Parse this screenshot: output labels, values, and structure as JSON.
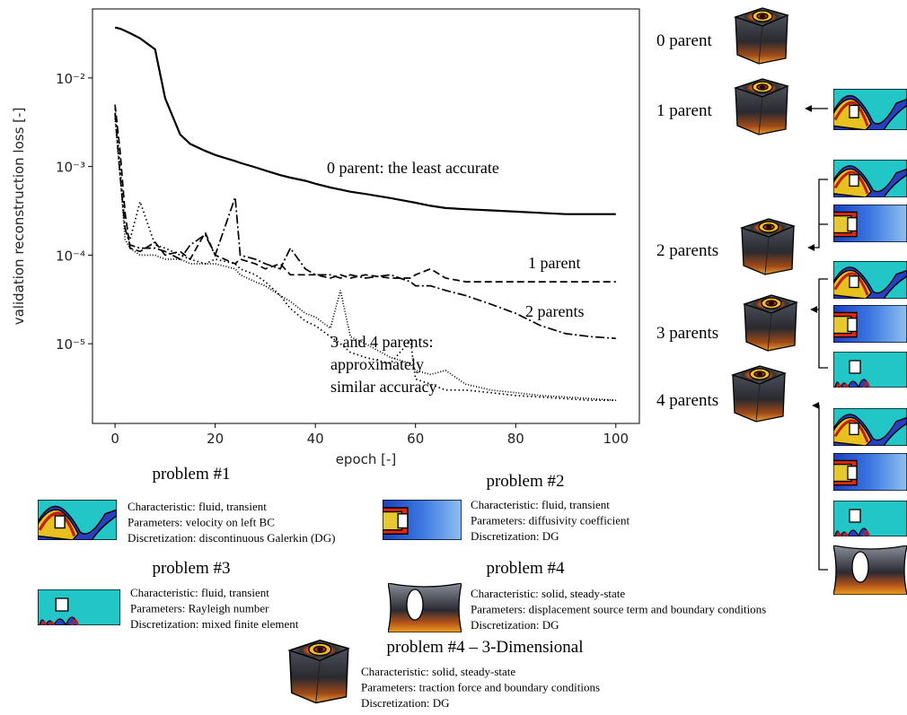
{
  "chart_data": {
    "type": "line",
    "yscale": "log",
    "x_label": "epoch [-]",
    "y_label": "validation reconstruction loss [-]",
    "xlim": [
      -4.5,
      104.7
    ],
    "xticks": [
      0,
      20,
      40,
      60,
      80,
      100
    ],
    "ylim": [
      1.26e-06,
      0.06
    ],
    "yticks": [
      {
        "value": 1e-05,
        "label": "10⁻⁵"
      },
      {
        "value": 0.0001,
        "label": "10⁻⁴"
      },
      {
        "value": 0.001,
        "label": "10⁻³"
      },
      {
        "value": 0.01,
        "label": "10⁻²"
      }
    ],
    "x": [
      0,
      1,
      2,
      3,
      5,
      8,
      10,
      13,
      15,
      18,
      20,
      24,
      25,
      28,
      30,
      33,
      35,
      38,
      40,
      43,
      45,
      47,
      50,
      55,
      59,
      60,
      63,
      66,
      70,
      75,
      80,
      85,
      90,
      95,
      100
    ],
    "series": [
      {
        "color": "#000",
        "dash": "solid",
        "values": [
          0.037,
          0.036,
          0.034,
          0.032,
          0.028,
          0.021,
          0.0059,
          0.0023,
          0.0018,
          0.0015,
          0.00135,
          0.00115,
          0.0011,
          0.00098,
          0.0009,
          0.0008,
          0.00075,
          0.00069,
          0.00064,
          0.00058,
          0.00055,
          0.00052,
          0.00049,
          0.00044,
          0.0004,
          0.00039,
          0.00036,
          0.00034,
          0.00033,
          0.00032,
          0.00031,
          0.0003,
          0.00029,
          0.00029,
          0.00029
        ]
      },
      {
        "color": "#000",
        "dash": "dashed",
        "values": [
          0.005,
          0.0015,
          0.0003,
          0.00012,
          0.00011,
          0.00014,
          0.0001,
          0.00011,
          9e-05,
          0.00018,
          0.0001,
          8e-05,
          9e-05,
          8e-05,
          7e-05,
          8e-05,
          6e-05,
          6e-05,
          6e-05,
          5.5e-05,
          6e-05,
          5.5e-05,
          6e-05,
          5.5e-05,
          5.5e-05,
          6e-05,
          7e-05,
          5.5e-05,
          5e-05,
          5e-05,
          5e-05,
          5e-05,
          5e-05,
          5e-05,
          5e-05
        ]
      },
      {
        "color": "#000",
        "dash": "dashdot",
        "values": [
          0.004,
          0.0008,
          0.0002,
          0.00013,
          0.00012,
          0.00012,
          0.00011,
          9e-05,
          0.00013,
          0.00017,
          0.0001,
          0.00045,
          0.0001,
          9e-05,
          8e-05,
          7e-05,
          0.00012,
          7e-05,
          6e-05,
          6e-05,
          5.5e-05,
          6e-05,
          5.5e-05,
          6e-05,
          5e-05,
          4.5e-05,
          4.5e-05,
          4e-05,
          3.5e-05,
          2.8e-05,
          2.2e-05,
          1.6e-05,
          1.3e-05,
          1.2e-05,
          1.15e-05
        ]
      },
      {
        "color": "#000",
        "dash": "dotted",
        "values": [
          0.0045,
          0.001,
          0.0002,
          0.00015,
          0.0004,
          0.00013,
          0.00012,
          0.0001,
          9e-05,
          8e-05,
          9e-05,
          8e-05,
          7e-05,
          6e-05,
          5e-05,
          3.5e-05,
          2.5e-05,
          1.8e-05,
          1.6e-05,
          1.2e-05,
          1e-05,
          8e-06,
          7e-06,
          6e-06,
          1.1e-05,
          4e-06,
          3.5e-06,
          3e-06,
          3e-06,
          2.8e-06,
          2.6e-06,
          2.5e-06,
          2.4e-06,
          2.3e-06,
          2.3e-06
        ]
      },
      {
        "color": "#000",
        "dash": "dotted2",
        "values": [
          0.0035,
          0.0008,
          0.00015,
          0.00012,
          0.0001,
          0.0001,
          9e-05,
          9e-05,
          8e-05,
          8e-05,
          8e-05,
          7e-05,
          6e-05,
          5e-05,
          4.5e-05,
          3.5e-05,
          3e-05,
          2.2e-05,
          2e-05,
          1.5e-05,
          4e-05,
          1.2e-05,
          1e-05,
          7e-06,
          6e-06,
          5e-06,
          4.5e-06,
          5e-06,
          3.5e-06,
          3e-06,
          2.8e-06,
          2.6e-06,
          2.5e-06,
          2.4e-06,
          2.3e-06
        ]
      }
    ],
    "annotations": [
      {
        "text": [
          "0 parent: the least accurate"
        ]
      },
      {
        "text": [
          "1 parent"
        ]
      },
      {
        "text": [
          "2 parents"
        ]
      },
      {
        "text": [
          "3 and 4 parents:",
          "approximately",
          "similar accuracy"
        ]
      }
    ]
  },
  "diagram": {
    "labels": [
      "0 parent",
      "1 parent",
      "2 parents",
      "3 parents",
      "4 parents"
    ]
  },
  "problems": [
    {
      "title": "problem #1",
      "lines": [
        "Characteristic: fluid, transient",
        "Parameters: velocity on left BC",
        "Discretization: discontinuous Galerkin (DG)"
      ]
    },
    {
      "title": "problem #2",
      "lines": [
        "Characteristic: fluid, transient",
        "Parameters: diffusivity coefficient",
        "Discretization: DG"
      ]
    },
    {
      "title": "problem #3",
      "lines": [
        "Characteristic: fluid, transient",
        "Parameters: Rayleigh number",
        "Discretization: mixed finite element"
      ]
    },
    {
      "title": "problem #4",
      "lines": [
        "Characteristic: solid, steady-state",
        "Parameters: displacement source term and boundary conditions",
        "Discretization: DG"
      ]
    },
    {
      "title": "problem #4 – 3-Dimensional",
      "lines": [
        "Characteristic: solid, steady-state",
        "Parameters: traction force and boundary conditions",
        "Discretization: DG"
      ]
    }
  ]
}
